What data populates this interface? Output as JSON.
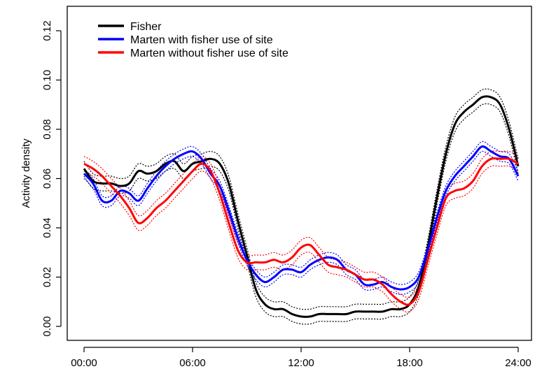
{
  "chart_data": {
    "type": "line",
    "title": "",
    "xlabel": "",
    "ylabel": "Activity density",
    "xlim": [
      0,
      24
    ],
    "ylim": [
      0,
      0.12
    ],
    "x_ticks": [
      {
        "value": 0,
        "label": "00:00"
      },
      {
        "value": 6,
        "label": "06:00"
      },
      {
        "value": 12,
        "label": "12:00"
      },
      {
        "value": 18,
        "label": "18:00"
      },
      {
        "value": 24,
        "label": "24:00"
      }
    ],
    "y_ticks": [
      {
        "value": 0,
        "label": "0.00"
      },
      {
        "value": 0.02,
        "label": "0.02"
      },
      {
        "value": 0.04,
        "label": "0.04"
      },
      {
        "value": 0.06,
        "label": "0.06"
      },
      {
        "value": 0.08,
        "label": "0.08"
      },
      {
        "value": 0.1,
        "label": "0.10"
      },
      {
        "value": 0.12,
        "label": "0.12"
      }
    ],
    "grid": false,
    "legend_position": "top-left",
    "confidence_bands": "dotted lines around each series",
    "x": [
      0,
      0.5,
      1,
      1.5,
      2,
      2.5,
      3,
      3.5,
      4,
      4.5,
      5,
      5.5,
      6,
      6.5,
      7,
      7.5,
      8,
      8.5,
      9,
      9.5,
      10,
      10.5,
      11,
      11.5,
      12,
      12.5,
      13,
      13.5,
      14,
      14.5,
      15,
      15.5,
      16,
      16.5,
      17,
      17.5,
      18,
      18.5,
      19,
      19.5,
      20,
      20.5,
      21,
      21.5,
      22,
      22.5,
      23,
      23.5,
      24
    ],
    "series": [
      {
        "name": "Fisher",
        "color": "#000000",
        "values": [
          0.064,
          0.059,
          0.058,
          0.058,
          0.057,
          0.058,
          0.063,
          0.062,
          0.063,
          0.066,
          0.067,
          0.063,
          0.066,
          0.067,
          0.068,
          0.066,
          0.058,
          0.043,
          0.029,
          0.015,
          0.009,
          0.007,
          0.007,
          0.005,
          0.004,
          0.004,
          0.005,
          0.005,
          0.005,
          0.005,
          0.006,
          0.006,
          0.006,
          0.006,
          0.007,
          0.007,
          0.009,
          0.016,
          0.032,
          0.052,
          0.07,
          0.082,
          0.087,
          0.09,
          0.093,
          0.093,
          0.09,
          0.08,
          0.065
        ],
        "band": 0.003
      },
      {
        "name": "Marten with fisher use of site",
        "color": "#0000ff",
        "values": [
          0.062,
          0.058,
          0.051,
          0.051,
          0.055,
          0.054,
          0.051,
          0.056,
          0.061,
          0.065,
          0.068,
          0.07,
          0.071,
          0.068,
          0.062,
          0.057,
          0.047,
          0.036,
          0.027,
          0.021,
          0.018,
          0.02,
          0.023,
          0.023,
          0.022,
          0.025,
          0.027,
          0.028,
          0.027,
          0.023,
          0.021,
          0.017,
          0.017,
          0.018,
          0.016,
          0.015,
          0.016,
          0.02,
          0.031,
          0.044,
          0.055,
          0.061,
          0.065,
          0.069,
          0.073,
          0.071,
          0.069,
          0.068,
          0.061
        ],
        "band": 0.002
      },
      {
        "name": "Marten without fisher use of site",
        "color": "#ff0000",
        "values": [
          0.066,
          0.064,
          0.061,
          0.057,
          0.053,
          0.048,
          0.042,
          0.044,
          0.048,
          0.051,
          0.055,
          0.059,
          0.063,
          0.066,
          0.063,
          0.054,
          0.042,
          0.031,
          0.026,
          0.026,
          0.026,
          0.027,
          0.026,
          0.028,
          0.032,
          0.033,
          0.029,
          0.025,
          0.024,
          0.023,
          0.021,
          0.019,
          0.019,
          0.017,
          0.013,
          0.01,
          0.009,
          0.014,
          0.027,
          0.04,
          0.052,
          0.055,
          0.056,
          0.059,
          0.065,
          0.068,
          0.068,
          0.068,
          0.066
        ],
        "band": 0.003
      }
    ]
  }
}
